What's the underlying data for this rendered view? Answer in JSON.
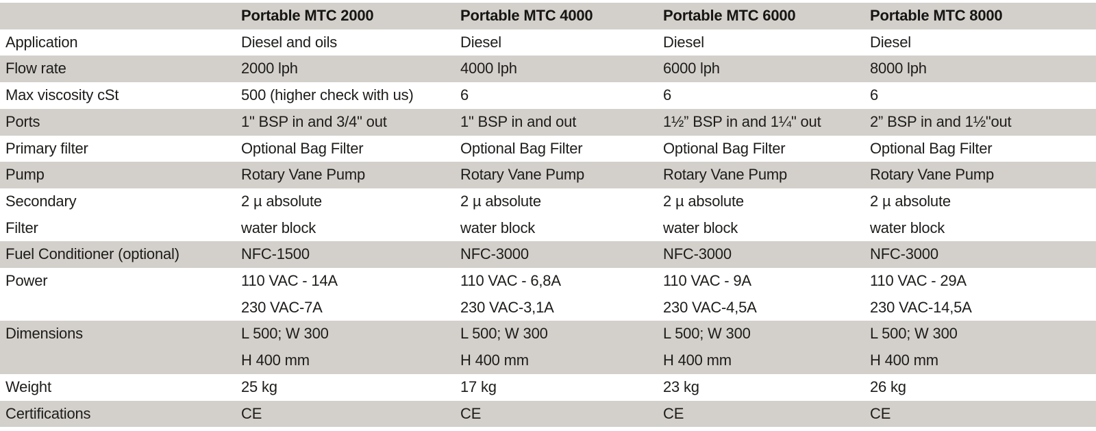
{
  "table": {
    "columns": [
      "",
      "Portable MTC 2000",
      "Portable MTC 4000",
      "Portable MTC 6000",
      "Portable MTC 8000"
    ],
    "rows": [
      {
        "label": "Application",
        "cells": [
          "Diesel and oils",
          "Diesel",
          "Diesel",
          "Diesel"
        ]
      },
      {
        "label": "Flow rate",
        "cells": [
          "2000 lph",
          "4000 lph",
          "6000 lph",
          "8000 lph"
        ]
      },
      {
        "label": "Max viscosity cSt",
        "cells": [
          "500 (higher check with us)",
          "6",
          "6",
          "6"
        ]
      },
      {
        "label": "Ports",
        "cells": [
          "1\" BSP in and 3/4\" out",
          "1\" BSP in and out",
          "1½” BSP in and 1¼\" out",
          "2” BSP in and 1½\"out"
        ]
      },
      {
        "label": "Primary filter",
        "cells": [
          "Optional Bag Filter",
          "Optional Bag Filter",
          "Optional Bag Filter",
          "Optional Bag Filter"
        ]
      },
      {
        "label": "Pump",
        "cells": [
          "Rotary Vane Pump",
          "Rotary Vane Pump",
          "Rotary Vane Pump",
          "Rotary Vane Pump"
        ]
      },
      {
        "label": "Secondary\nFilter",
        "cells": [
          "2 µ absolute\nwater block",
          "2 µ absolute\nwater block",
          "2 µ absolute\nwater block",
          "2 µ absolute\nwater block"
        ]
      },
      {
        "label": "Fuel Conditioner (optional)",
        "cells": [
          "NFC-1500",
          "NFC-3000",
          "NFC-3000",
          "NFC-3000"
        ]
      },
      {
        "label": "Power",
        "cells": [
          "110 VAC - 14A\n230 VAC-7A",
          "110 VAC - 6,8A\n230 VAC-3,1A",
          "110 VAC - 9A\n230 VAC-4,5A",
          "110 VAC - 29A\n230 VAC-14,5A"
        ]
      },
      {
        "label": "Dimensions",
        "cells": [
          "L 500; W 300\nH 400 mm",
          "L 500; W 300\nH 400 mm",
          "L 500; W 300\nH 400 mm",
          "L 500; W 300\nH 400 mm"
        ]
      },
      {
        "label": "Weight",
        "cells": [
          "25 kg",
          "17 kg",
          "23 kg",
          "26 kg"
        ]
      },
      {
        "label": "Certifications",
        "cells": [
          "CE",
          "CE",
          "CE",
          "CE"
        ]
      }
    ],
    "colors": {
      "stripe": "#d3d0cb",
      "text": "#1d1c1a"
    }
  }
}
